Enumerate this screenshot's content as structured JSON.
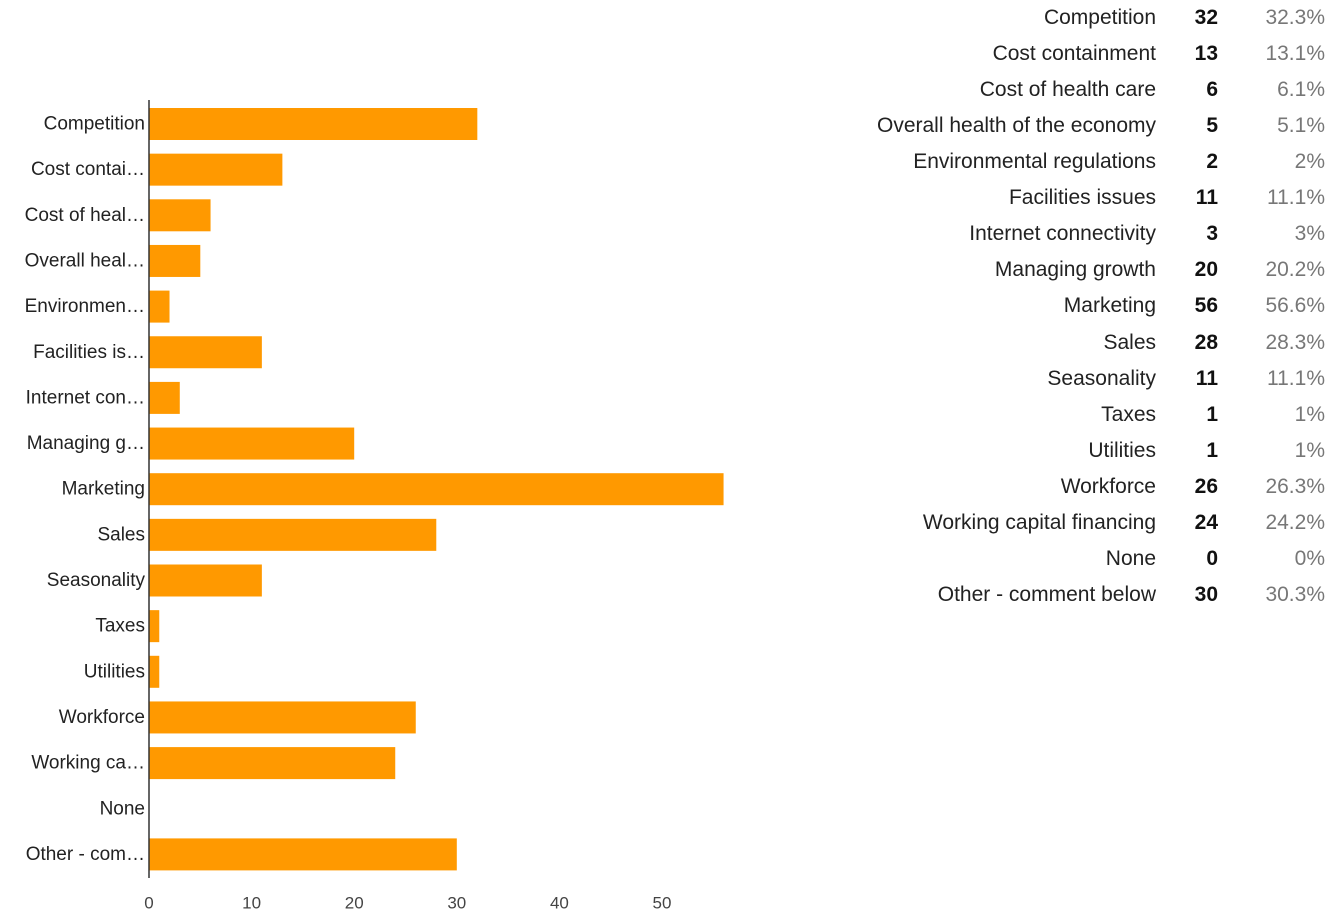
{
  "colors": {
    "bar": "#ff9900",
    "axis": "#333333"
  },
  "chart_data": {
    "type": "bar",
    "orientation": "horizontal",
    "categories": [
      "Competition",
      "Cost containment",
      "Cost of health care",
      "Overall health of the economy",
      "Environmental regulations",
      "Facilities issues",
      "Internet connectivity",
      "Managing growth",
      "Marketing",
      "Sales",
      "Seasonality",
      "Taxes",
      "Utilities",
      "Workforce",
      "Working capital financing",
      "None",
      "Other - comment below"
    ],
    "category_labels": [
      "Competition",
      "Cost contai…",
      "Cost of heal…",
      "Overall heal…",
      "Environmen…",
      "Facilities is…",
      "Internet con…",
      "Managing g…",
      "Marketing",
      "Sales",
      "Seasonality",
      "Taxes",
      "Utilities",
      "Workforce",
      "Working ca…",
      "None",
      "Other - com…"
    ],
    "values": [
      32,
      13,
      6,
      5,
      2,
      11,
      3,
      20,
      56,
      28,
      11,
      1,
      1,
      26,
      24,
      0,
      30
    ],
    "percentages": [
      "32.3%",
      "13.1%",
      "6.1%",
      "5.1%",
      "2%",
      "11.1%",
      "3%",
      "20.2%",
      "56.6%",
      "28.3%",
      "11.1%",
      "1%",
      "1%",
      "26.3%",
      "24.2%",
      "0%",
      "30.3%"
    ],
    "xlim": [
      0,
      60
    ],
    "xticks": [
      0,
      10,
      20,
      30,
      40,
      50
    ],
    "grid": false,
    "title": "",
    "xlabel": "",
    "ylabel": ""
  }
}
